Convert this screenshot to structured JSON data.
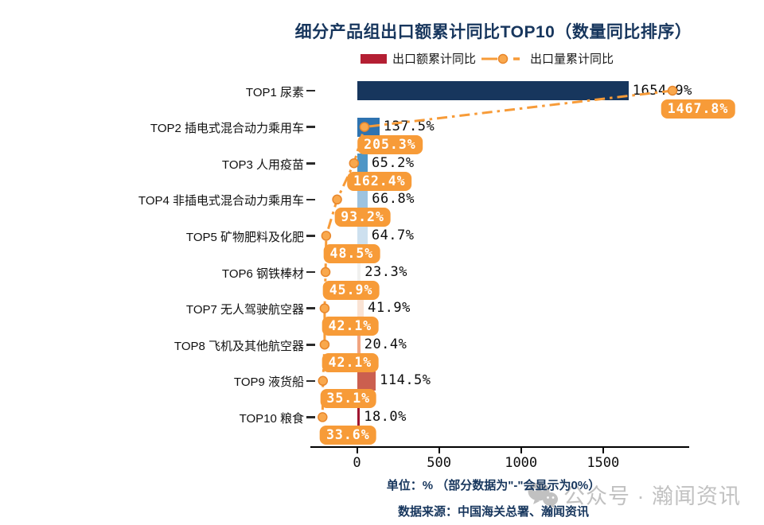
{
  "title": "细分产品组出口额累计同比TOP10（数量同比排序）",
  "legend": {
    "bar": {
      "label": "出口额累计同比",
      "color": "#b41f33"
    },
    "line": {
      "label": "出口量累计同比",
      "color": "#f79b38"
    }
  },
  "chart_data": {
    "type": "bar",
    "orientation": "horizontal",
    "title": "细分产品组出口额累计同比TOP10（数量同比排序）",
    "unit": "%",
    "categories": [
      "TOP1 尿素",
      "TOP2 插电式混合动力乘用车",
      "TOP3 人用疫苗",
      "TOP4 非插电式混合动力乘用车",
      "TOP5 矿物肥料及化肥",
      "TOP6 钢铁棒材",
      "TOP7 无人驾驶航空器",
      "TOP8 飞机及其他航空器",
      "TOP9 液货船",
      "TOP10 粮食"
    ],
    "series": [
      {
        "name": "出口额累计同比",
        "type": "bar",
        "values": [
          1654.9,
          137.5,
          65.2,
          66.8,
          64.7,
          23.3,
          41.9,
          20.4,
          114.5,
          18.0
        ],
        "labels": [
          "1654.9%",
          "137.5%",
          "65.2%",
          "66.8%",
          "64.7%",
          "23.3%",
          "41.9%",
          "20.4%",
          "114.5%",
          "18.0%"
        ],
        "colors": [
          "#17365d",
          "#2e73b0",
          "#4f96c6",
          "#9dc3e0",
          "#cde0ef",
          "#f1f1ef",
          "#fae3d4",
          "#f1a47f",
          "#cb5f4f",
          "#a0152f"
        ]
      },
      {
        "name": "出口量累计同比",
        "type": "line",
        "color": "#f79b38",
        "marker_fill": "#f9a84d",
        "marker_stroke": "#e8872c",
        "values": [
          1467.8,
          205.3,
          162.4,
          93.2,
          48.5,
          45.9,
          42.1,
          42.1,
          35.1,
          33.6
        ],
        "labels": [
          "1467.8%",
          "205.3%",
          "162.4%",
          "93.2%",
          "48.5%",
          "45.9%",
          "42.1%",
          "42.1%",
          "35.1%",
          "33.6%"
        ]
      }
    ],
    "x_axis": {
      "ticks": [
        0,
        500,
        1000,
        1500
      ],
      "tick_labels": [
        "0",
        "500",
        "1000",
        "1500"
      ]
    },
    "grid": false,
    "legend_position": "top"
  },
  "footer": {
    "unit_note": "单位：%  （部分数据为\"-\"会显示为0%）",
    "source": "数据来源：中国海关总署、瀚闻资讯"
  },
  "watermark": {
    "text": "公众号 · 瀚闻资讯"
  }
}
